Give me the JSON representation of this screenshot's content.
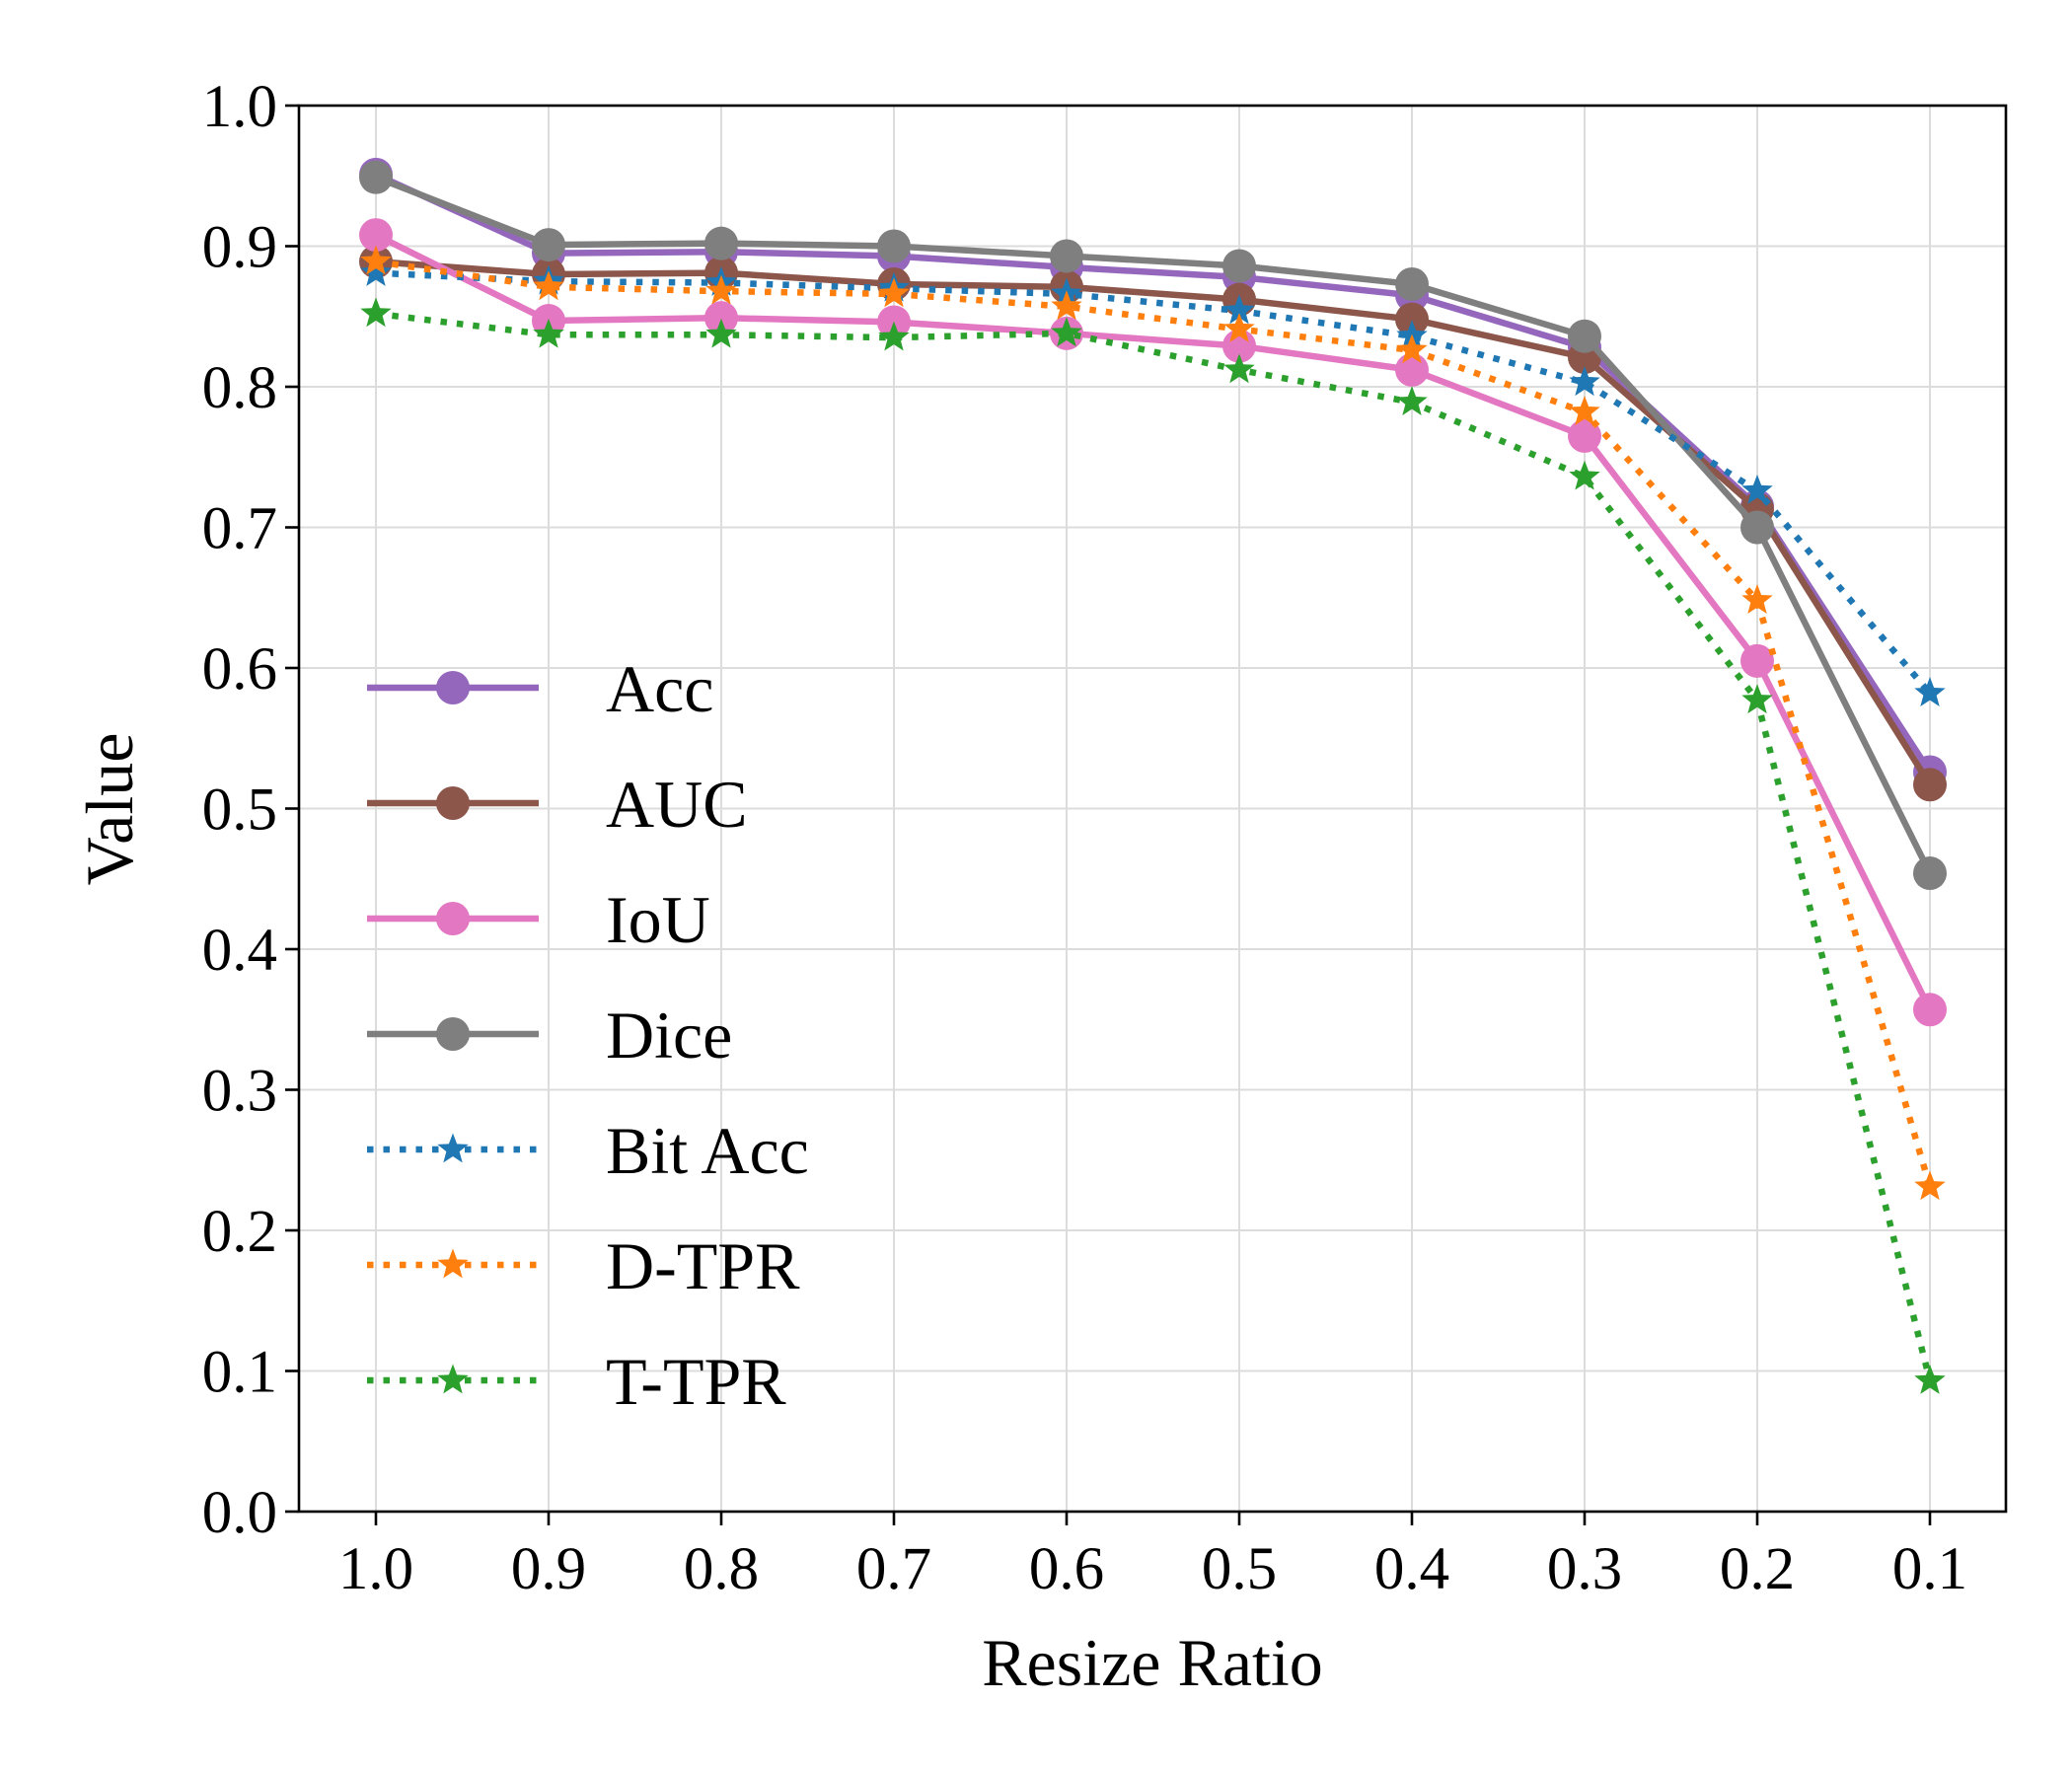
{
  "chart_data": {
    "type": "line",
    "title": "",
    "xlabel": "Resize Ratio",
    "ylabel": "Value",
    "categories": [
      "1.0",
      "0.9",
      "0.8",
      "0.7",
      "0.6",
      "0.5",
      "0.4",
      "0.3",
      "0.2",
      "0.1"
    ],
    "ylim": [
      0.0,
      1.0
    ],
    "yticks": [
      "0.0",
      "0.1",
      "0.2",
      "0.3",
      "0.4",
      "0.5",
      "0.6",
      "0.7",
      "0.8",
      "0.9",
      "1.0"
    ],
    "grid": true,
    "legend_position": "center-left",
    "series": [
      {
        "name": "Acc",
        "color": "#9467bd",
        "style": "solid",
        "marker": "circle",
        "values": [
          0.951,
          0.895,
          0.896,
          0.893,
          0.885,
          0.878,
          0.865,
          0.828,
          0.715,
          0.526
        ]
      },
      {
        "name": "AUC",
        "color": "#8c564b",
        "style": "solid",
        "marker": "circle",
        "values": [
          0.889,
          0.88,
          0.881,
          0.873,
          0.871,
          0.862,
          0.848,
          0.821,
          0.713,
          0.517
        ]
      },
      {
        "name": "IoU",
        "color": "#e377c2",
        "style": "solid",
        "marker": "circle",
        "values": [
          0.908,
          0.847,
          0.849,
          0.846,
          0.838,
          0.829,
          0.812,
          0.765,
          0.605,
          0.357
        ]
      },
      {
        "name": "Dice",
        "color": "#7f7f7f",
        "style": "solid",
        "marker": "circle",
        "values": [
          0.949,
          0.901,
          0.902,
          0.9,
          0.893,
          0.886,
          0.873,
          0.836,
          0.7,
          0.454
        ]
      },
      {
        "name": "Bit Acc",
        "color": "#1f77b4",
        "style": "dotted",
        "marker": "star",
        "values": [
          0.881,
          0.875,
          0.874,
          0.87,
          0.866,
          0.854,
          0.836,
          0.803,
          0.726,
          0.582
        ]
      },
      {
        "name": "D-TPR",
        "color": "#ff7f0e",
        "style": "dotted",
        "marker": "star",
        "values": [
          0.889,
          0.871,
          0.868,
          0.866,
          0.857,
          0.841,
          0.826,
          0.782,
          0.648,
          0.231
        ]
      },
      {
        "name": "T-TPR",
        "color": "#2ca02c",
        "style": "dotted",
        "marker": "star",
        "values": [
          0.852,
          0.837,
          0.837,
          0.835,
          0.838,
          0.812,
          0.789,
          0.736,
          0.577,
          0.093
        ]
      }
    ]
  }
}
